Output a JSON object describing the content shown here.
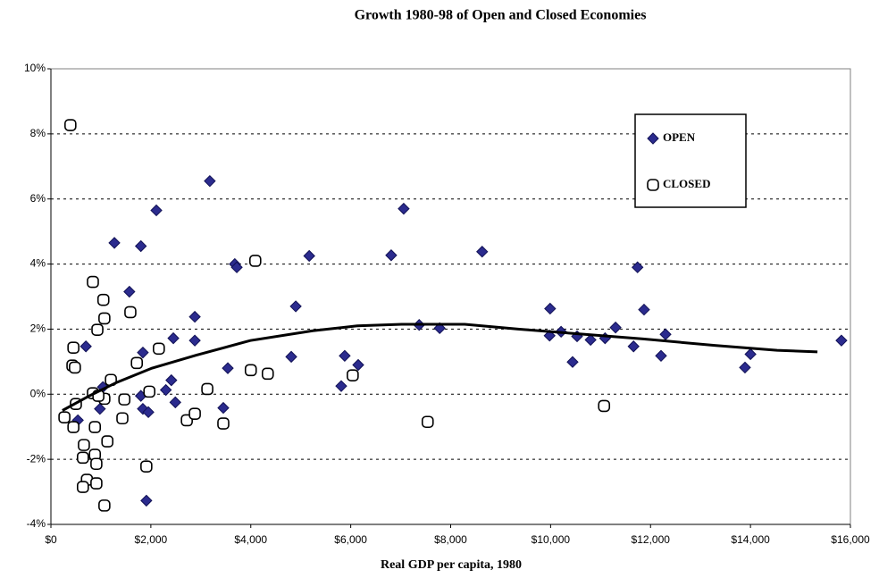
{
  "chart_data": {
    "type": "scatter",
    "title": "Growth 1980-98 of Open and Closed Economies",
    "x_label": "Real GDP per capita, 1980",
    "xlim": [
      0,
      16000
    ],
    "ylim": [
      -4,
      10
    ],
    "xticks": [
      {
        "value": 0,
        "label": "$0"
      },
      {
        "value": 2000,
        "label": "$2,000"
      },
      {
        "value": 4000,
        "label": "$4,000"
      },
      {
        "value": 6000,
        "label": "$6,000"
      },
      {
        "value": 8000,
        "label": "$8,000"
      },
      {
        "value": 10000,
        "label": "$10,000"
      },
      {
        "value": 12000,
        "label": "$12,000"
      },
      {
        "value": 14000,
        "label": "$14,000"
      },
      {
        "value": 16000,
        "label": "$16,000"
      }
    ],
    "yticks": [
      {
        "value": -4,
        "label": "-4%"
      },
      {
        "value": -2,
        "label": "-2%"
      },
      {
        "value": 0,
        "label": "0%"
      },
      {
        "value": 2,
        "label": "2%"
      },
      {
        "value": 4,
        "label": "4%"
      },
      {
        "value": 6,
        "label": "6%"
      },
      {
        "value": 8,
        "label": "8%"
      },
      {
        "value": 10,
        "label": "10%"
      }
    ],
    "grid": true,
    "legend": "upper right",
    "series": [
      {
        "name": "OPEN",
        "color": "#2b2b8e",
        "marker": "diamond",
        "x": [
          3180,
          2110,
          7060,
          1270,
          1800,
          8630,
          5170,
          6810,
          3680,
          3720,
          1570,
          11740,
          9990,
          11870,
          4900,
          2880,
          700,
          1840,
          2450,
          7370,
          7780,
          11300,
          9980,
          10210,
          10530,
          10800,
          11090,
          11660,
          12300,
          12210,
          10440,
          13890,
          14000,
          15820,
          2880,
          4810,
          5880,
          6150,
          3540,
          5810,
          2410,
          2300,
          2490,
          3450,
          1040,
          980,
          540,
          1800,
          1840,
          1950,
          1910
        ],
        "values": [
          6.55,
          5.65,
          5.7,
          4.65,
          4.55,
          4.38,
          4.25,
          4.27,
          4.0,
          3.9,
          3.15,
          3.9,
          2.63,
          2.6,
          2.7,
          2.38,
          1.47,
          1.28,
          1.72,
          2.13,
          2.03,
          2.05,
          1.8,
          1.92,
          1.78,
          1.67,
          1.72,
          1.47,
          1.84,
          1.18,
          0.99,
          0.82,
          1.23,
          1.65,
          1.65,
          1.15,
          1.18,
          0.9,
          0.8,
          0.25,
          0.43,
          0.13,
          -0.25,
          -0.42,
          0.22,
          -0.45,
          -0.8,
          -0.05,
          -0.45,
          -0.55,
          -3.27
        ]
      },
      {
        "name": "CLOSED",
        "color": "#ffffff",
        "marker": "octagon",
        "x": [
          390,
          840,
          1050,
          1070,
          930,
          1590,
          4090,
          450,
          430,
          480,
          2160,
          1720,
          1200,
          4000,
          4340,
          3130,
          6040,
          1970,
          1470,
          1070,
          840,
          950,
          270,
          500,
          450,
          1430,
          2720,
          2880,
          3450,
          7540,
          11070,
          880,
          1130,
          660,
          640,
          880,
          910,
          720,
          910,
          640,
          1910,
          1070
        ],
        "values": [
          8.27,
          3.45,
          2.9,
          2.33,
          1.98,
          2.52,
          4.1,
          1.43,
          0.88,
          0.82,
          1.4,
          0.96,
          0.44,
          0.74,
          0.63,
          0.16,
          0.58,
          0.08,
          -0.16,
          -0.14,
          0.03,
          -0.05,
          -0.71,
          -0.3,
          -1.01,
          -0.74,
          -0.8,
          -0.6,
          -0.9,
          -0.85,
          -0.36,
          -1.01,
          -1.45,
          -1.56,
          -1.95,
          -1.86,
          -2.14,
          -2.63,
          -2.74,
          -2.85,
          -2.22,
          -3.42
        ]
      }
    ],
    "trend": {
      "color": "#000000",
      "x": [
        230,
        770,
        1300,
        2020,
        2910,
        3990,
        5240,
        6130,
        7020,
        8280,
        9350,
        10600,
        11850,
        13280,
        14530,
        15340
      ],
      "values": [
        -0.5,
        -0.05,
        0.35,
        0.8,
        1.2,
        1.65,
        1.95,
        2.1,
        2.15,
        2.15,
        2.0,
        1.85,
        1.7,
        1.5,
        1.35,
        1.3
      ]
    }
  }
}
